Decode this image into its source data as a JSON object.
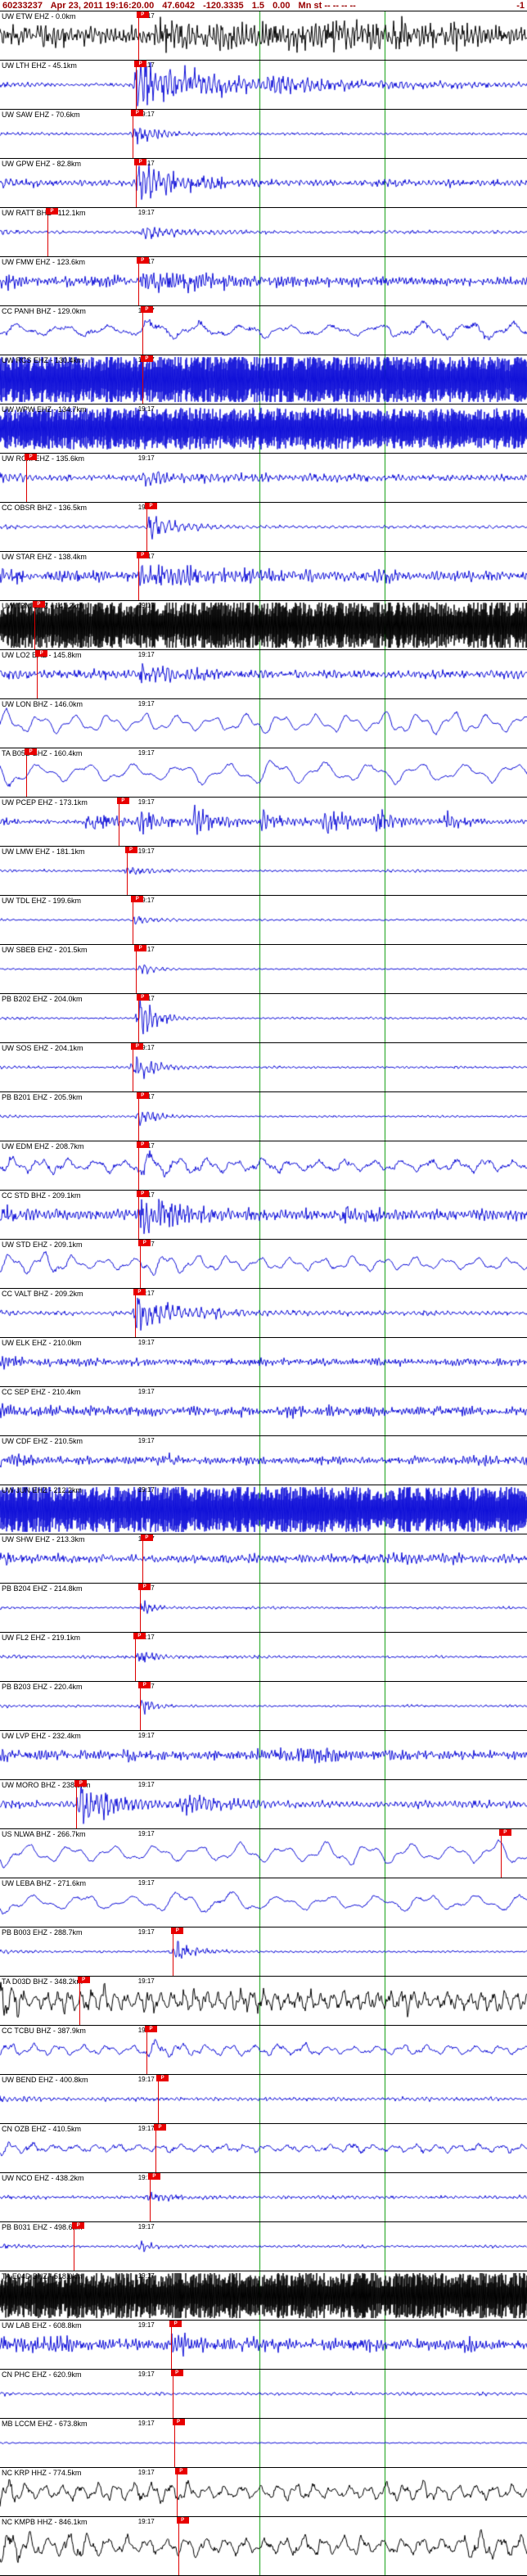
{
  "header": {
    "event_id": "60233237",
    "datetime": "Apr 23, 2011 19:16:20.00",
    "latitude": "47.6042",
    "longitude": "-120.3335",
    "magnitude": "1.5",
    "depth": "0.00",
    "flags_text": "Mn st -- -- -- --",
    "right_value": "-1",
    "text_color": "#990000"
  },
  "timeline": {
    "tick_label": "19:17",
    "tick_x": 0.262,
    "gridline_color": "#009900",
    "gridlines_x": [
      0.492,
      0.73
    ]
  },
  "pick": {
    "flag_label": "P",
    "flag_color": "#e80000",
    "line_color": "#dd0000"
  },
  "trace_colors": {
    "blue": "#1010d8",
    "black": "#000000"
  },
  "stations": [
    {
      "label": "UW ETW EHZ - 0.0km",
      "color": "black",
      "amp": 7,
      "period": 5,
      "jitter": 0.9,
      "bursts": [
        [
          0.08,
          5,
          150
        ],
        [
          0.3,
          7,
          180
        ],
        [
          0.62,
          6,
          160
        ]
      ],
      "flag": 0.262
    },
    {
      "label": "UW LTH EHZ - 45.1km",
      "color": "blue",
      "amp": 2.2,
      "period": 6,
      "jitter": 0.7,
      "bursts": [
        [
          0.262,
          23,
          90
        ],
        [
          0.5,
          4,
          200
        ]
      ],
      "flag": 0.258
    },
    {
      "label": "UW SAW EHZ - 70.6km",
      "color": "blue",
      "amp": 1.4,
      "period": 6,
      "jitter": 0.7,
      "bursts": [
        [
          0.258,
          9,
          25
        ]
      ],
      "flag": 0.252
    },
    {
      "label": "UW GPW EHZ - 82.8km",
      "color": "blue",
      "amp": 3.5,
      "period": 6,
      "jitter": 0.8,
      "bursts": [
        [
          0.265,
          13,
          60
        ]
      ],
      "flag": 0.258
    },
    {
      "label": "UW RATT BHZ - 112.1km",
      "color": "blue",
      "amp": 1.8,
      "period": 7,
      "jitter": 0.6,
      "bursts": [
        [
          0.275,
          6,
          40
        ]
      ],
      "flag": 0.09
    },
    {
      "label": "UW FMW EHZ - 123.6km",
      "color": "blue",
      "amp": 4.5,
      "period": 4,
      "jitter": 1.0,
      "bursts": [
        [
          0.275,
          7,
          80
        ]
      ],
      "flag": 0.262
    },
    {
      "label": "CC PANH BHZ - 129.0km",
      "color": "blue",
      "amp": 9,
      "period": 55,
      "jitter": 0.3,
      "bursts": [
        [
          0.278,
          8,
          30
        ]
      ],
      "flag": 0.27
    },
    {
      "label": "UW RCS EHZ - 130.4km",
      "color": "blue",
      "amp": 20,
      "period": 3,
      "jitter": 1.3,
      "flag": 0.27
    },
    {
      "label": "UW WPW EHZ - 134.7km",
      "color": "blue",
      "amp": 17,
      "period": 3,
      "jitter": 1.3,
      "flag": null
    },
    {
      "label": "UW RCM EHZ - 135.6km",
      "color": "blue",
      "amp": 3.5,
      "period": 6,
      "jitter": 0.8,
      "bursts": [
        [
          0.28,
          5,
          60
        ]
      ],
      "flag": 0.05
    },
    {
      "label": "CC OBSR BHZ - 136.5km",
      "color": "blue",
      "amp": 1.8,
      "period": 8,
      "jitter": 0.5,
      "bursts": [
        [
          0.285,
          11,
          35
        ]
      ],
      "flag": 0.278
    },
    {
      "label": "UW STAR EHZ - 138.4km",
      "color": "blue",
      "amp": 5,
      "period": 5,
      "jitter": 0.9,
      "bursts": [
        [
          0.27,
          7,
          70
        ]
      ],
      "flag": 0.262
    },
    {
      "label": "UW TBM EHZ - 141.2km",
      "color": "black",
      "amp": 20,
      "period": 3,
      "jitter": 1.3,
      "flag": 0.065
    },
    {
      "label": "UW LO2 EHZ - 145.8km",
      "color": "blue",
      "amp": 4.5,
      "period": 6,
      "jitter": 0.8,
      "bursts": [
        [
          0.27,
          6,
          60
        ]
      ],
      "flag": 0.07
    },
    {
      "label": "UW LON BHZ - 146.0km",
      "color": "blue",
      "amp": 13,
      "period": 42,
      "jitter": 0.08,
      "flag": null
    },
    {
      "label": "TA B05D BHZ - 160.4km",
      "color": "blue",
      "amp": 15,
      "period": 58,
      "jitter": 0.08,
      "flag": 0.05
    },
    {
      "label": "UW PCEP EHZ - 173.1km",
      "color": "blue",
      "amp": 2.5,
      "period": 5,
      "jitter": 0.8,
      "bursts": [
        [
          0.17,
          10,
          25
        ],
        [
          0.27,
          9,
          25
        ],
        [
          0.37,
          11,
          25
        ],
        [
          0.5,
          8,
          20
        ],
        [
          0.62,
          10,
          25
        ],
        [
          0.72,
          9,
          25
        ],
        [
          0.85,
          7,
          20
        ]
      ],
      "flag": 0.225
    },
    {
      "label": "UW LMW EHZ - 181.1km",
      "color": "blue",
      "amp": 1.3,
      "period": 6,
      "jitter": 0.6,
      "bursts": [
        [
          0.245,
          4,
          30
        ]
      ],
      "flag": 0.24
    },
    {
      "label": "UW TDL EHZ - 199.6km",
      "color": "blue",
      "amp": 1.1,
      "period": 7,
      "jitter": 0.6,
      "bursts": [
        [
          0.26,
          5,
          25
        ]
      ],
      "flag": 0.252
    },
    {
      "label": "UW SBEB EHZ - 201.5km",
      "color": "blue",
      "amp": 0.9,
      "period": 7,
      "jitter": 0.6,
      "bursts": [
        [
          0.27,
          6,
          15
        ]
      ],
      "flag": 0.258
    },
    {
      "label": "PB B202 EHZ - 204.0km",
      "color": "blue",
      "amp": 1.2,
      "period": 6,
      "jitter": 0.7,
      "bursts": [
        [
          0.268,
          17,
          18
        ]
      ],
      "flag": 0.262
    },
    {
      "label": "UW SOS EHZ - 204.1km",
      "color": "blue",
      "amp": 1.4,
      "period": 6,
      "jitter": 0.7,
      "bursts": [
        [
          0.258,
          11,
          22
        ]
      ],
      "flag": 0.252
    },
    {
      "label": "PB B201 EHZ - 205.9km",
      "color": "blue",
      "amp": 1.1,
      "period": 6,
      "jitter": 0.7,
      "bursts": [
        [
          0.268,
          8,
          18
        ]
      ],
      "flag": 0.262
    },
    {
      "label": "UW EDM EHZ - 208.7km",
      "color": "blue",
      "amp": 8,
      "period": 34,
      "jitter": 0.35,
      "bursts": [
        [
          0.27,
          10,
          50
        ]
      ],
      "flag": 0.262
    },
    {
      "label": "CC STD BHZ - 209.1km",
      "color": "blue",
      "amp": 6,
      "period": 5,
      "jitter": 0.9,
      "bursts": [
        [
          0.27,
          12,
          45
        ]
      ],
      "flag": 0.262
    },
    {
      "label": "UW STD EHZ - 209.1km",
      "color": "blue",
      "amp": 10,
      "period": 38,
      "jitter": 0.15,
      "bursts": [
        [
          0.272,
          9,
          40
        ]
      ],
      "flag": 0.266
    },
    {
      "label": "CC VALT BHZ - 209.2km",
      "color": "blue",
      "amp": 2.5,
      "period": 7,
      "jitter": 0.6,
      "bursts": [
        [
          0.262,
          15,
          55
        ]
      ],
      "flag": 0.256
    },
    {
      "label": "UW ELK EHZ - 210.0km",
      "color": "blue",
      "amp": 3.5,
      "period": 4,
      "jitter": 1.0,
      "flag": null
    },
    {
      "label": "CC SEP EHZ - 210.4km",
      "color": "blue",
      "amp": 4.5,
      "period": 3.5,
      "jitter": 1.1,
      "flag": null
    },
    {
      "label": "UW CDF EHZ - 210.5km",
      "color": "blue",
      "amp": 4,
      "period": 4,
      "jitter": 1.0,
      "flag": null
    },
    {
      "label": "UW JUN EHZ - 212.2km",
      "color": "blue",
      "amp": 19,
      "period": 3,
      "jitter": 1.3,
      "flag": null
    },
    {
      "label": "UW SHW EHZ - 213.3km",
      "color": "blue",
      "amp": 4.5,
      "period": 5,
      "jitter": 0.9,
      "flag": 0.27
    },
    {
      "label": "PB B204 EHZ - 214.8km",
      "color": "blue",
      "amp": 1.3,
      "period": 6,
      "jitter": 0.7,
      "bursts": [
        [
          0.272,
          6,
          15
        ]
      ],
      "flag": 0.266
    },
    {
      "label": "UW FL2 EHZ - 219.1km",
      "color": "blue",
      "amp": 1.4,
      "period": 6,
      "jitter": 0.7,
      "bursts": [
        [
          0.262,
          5,
          20
        ]
      ],
      "flag": 0.256
    },
    {
      "label": "PB B203 EHZ - 220.4km",
      "color": "blue",
      "amp": 1.3,
      "period": 6,
      "jitter": 0.7,
      "bursts": [
        [
          0.272,
          7,
          15
        ]
      ],
      "flag": 0.266
    },
    {
      "label": "UW LVP EHZ - 232.4km",
      "color": "blue",
      "amp": 5,
      "period": 4,
      "jitter": 1.0,
      "flag": null
    },
    {
      "label": "UW MORO BHZ - 238.9km",
      "color": "blue",
      "amp": 3.5,
      "period": 6,
      "jitter": 0.7,
      "bursts": [
        [
          0.155,
          19,
          35
        ],
        [
          0.35,
          5,
          80
        ]
      ],
      "flag": 0.145
    },
    {
      "label": "US NLWA BHZ - 266.7km",
      "color": "blue",
      "amp": 14,
      "period": 52,
      "jitter": 0.08,
      "flag": 0.95
    },
    {
      "label": "UW LEBA BHZ - 271.6km",
      "color": "blue",
      "amp": 12,
      "period": 60,
      "jitter": 0.1,
      "flag": null
    },
    {
      "label": "PB B003 EHZ - 288.7km",
      "color": "blue",
      "amp": 1.3,
      "period": 6,
      "jitter": 0.7,
      "bursts": [
        [
          0.335,
          13,
          18
        ]
      ],
      "flag": 0.328
    },
    {
      "label": "TA D03D BHZ - 348.2km",
      "color": "black",
      "amp": 14,
      "period": 14,
      "jitter": 0.5,
      "flag": 0.15
    },
    {
      "label": "CC TCBU BHZ - 387.9km",
      "color": "blue",
      "amp": 7,
      "period": 30,
      "jitter": 0.3,
      "bursts": [
        [
          0.285,
          7,
          40
        ]
      ],
      "flag": 0.278
    },
    {
      "label": "UW BEND EHZ - 400.8km",
      "color": "blue",
      "amp": 2.2,
      "period": 6,
      "jitter": 0.7,
      "flag": 0.3
    },
    {
      "label": "CN OZB EHZ - 410.5km",
      "color": "blue",
      "amp": 6,
      "period": 26,
      "jitter": 0.4,
      "flag": 0.295
    },
    {
      "label": "UW NCO EHZ - 438.2km",
      "color": "blue",
      "amp": 1.8,
      "period": 6,
      "jitter": 0.7,
      "bursts": [
        [
          0.29,
          4,
          25
        ]
      ],
      "flag": 0.284
    },
    {
      "label": "PB B031 EHZ - 498.6km",
      "color": "blue",
      "amp": 1.4,
      "period": 6,
      "jitter": 0.7,
      "bursts": [
        [
          0.27,
          4,
          15
        ]
      ],
      "flag": 0.14
    },
    {
      "label": "TA E04D BHZ - 518.0km",
      "color": "black",
      "amp": 19,
      "period": 3,
      "jitter": 1.3,
      "flag": null
    },
    {
      "label": "UW LAB EHZ - 608.8km",
      "color": "blue",
      "amp": 6,
      "period": 4,
      "jitter": 1.0,
      "bursts": [
        [
          0.33,
          4,
          60
        ]
      ],
      "flag": 0.325
    },
    {
      "label": "CN PHC EHZ - 620.9km",
      "color": "blue",
      "amp": 1.8,
      "period": 7,
      "jitter": 0.6,
      "flag": 0.327
    },
    {
      "label": "MB LCCM EHZ - 673.8km",
      "color": "blue",
      "amp": 0.8,
      "period": 8,
      "jitter": 0.5,
      "flag": 0.33
    },
    {
      "label": "NC KRP HHZ - 774.5km",
      "color": "black",
      "amp": 11,
      "period": 22,
      "jitter": 0.3,
      "flag": 0.335
    },
    {
      "label": "NC KMPB HHZ - 846.1km",
      "color": "black",
      "amp": 13,
      "period": 24,
      "jitter": 0.3,
      "flag": 0.338,
      "h": 72
    }
  ]
}
